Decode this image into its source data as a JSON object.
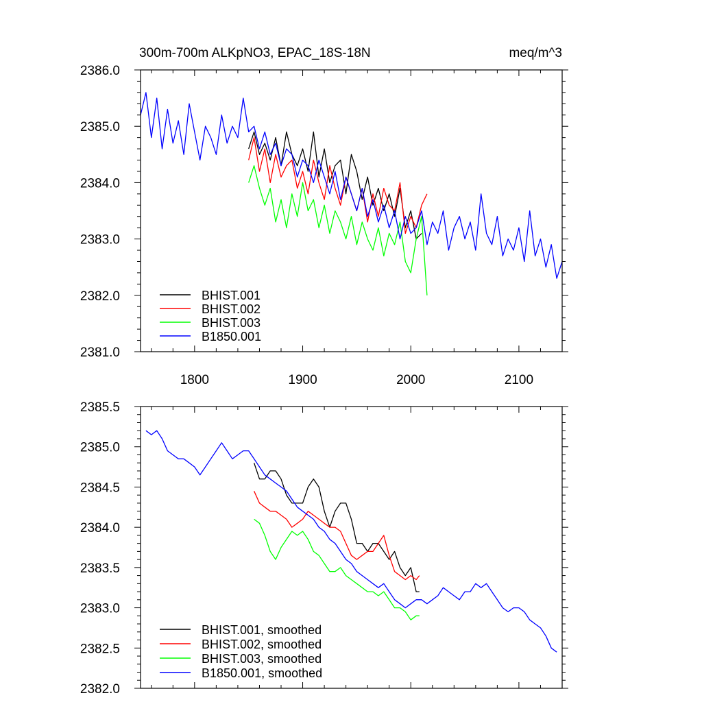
{
  "colors": {
    "black": "#000000",
    "red": "#ff0000",
    "green": "#00ff00",
    "blue": "#0000ff"
  },
  "chart_data": [
    {
      "type": "line",
      "title": "300m-700m ALKpNO3, EPAC_18S-18N",
      "units": "meq/m^3",
      "xlabel": "",
      "ylabel": "",
      "xlim": [
        1750,
        2140
      ],
      "ylim": [
        2381.0,
        2386.0
      ],
      "xticks": [
        1800,
        1900,
        2000,
        2100
      ],
      "xtick_labels": [
        "1800",
        "1900",
        "2000",
        "2100"
      ],
      "yticks": [
        2381.0,
        2382.0,
        2383.0,
        2384.0,
        2385.0,
        2386.0
      ],
      "ytick_labels": [
        "2381.0",
        "2382.0",
        "2383.0",
        "2384.0",
        "2385.0",
        "2386.0"
      ],
      "legend_position": "bottom-left",
      "series": [
        {
          "name": "BHIST.001",
          "color": "#000000",
          "x": [
            1850,
            1855,
            1860,
            1865,
            1870,
            1875,
            1880,
            1885,
            1890,
            1895,
            1900,
            1905,
            1910,
            1915,
            1920,
            1925,
            1930,
            1935,
            1940,
            1945,
            1950,
            1955,
            1960,
            1965,
            1970,
            1975,
            1980,
            1985,
            1990,
            1995,
            2000,
            2005,
            2010
          ],
          "y": [
            2384.6,
            2384.9,
            2384.5,
            2384.7,
            2384.4,
            2384.8,
            2384.3,
            2384.9,
            2384.5,
            2384.3,
            2384.6,
            2384.2,
            2384.9,
            2384.1,
            2384.6,
            2384.0,
            2384.3,
            2384.4,
            2383.8,
            2384.5,
            2384.2,
            2383.7,
            2384.1,
            2383.6,
            2383.9,
            2383.5,
            2383.8,
            2383.4,
            2383.9,
            2383.2,
            2383.5,
            2383.0,
            2383.1
          ]
        },
        {
          "name": "BHIST.002",
          "color": "#ff0000",
          "x": [
            1850,
            1855,
            1860,
            1865,
            1870,
            1875,
            1880,
            1885,
            1890,
            1895,
            1900,
            1905,
            1910,
            1915,
            1920,
            1925,
            1930,
            1935,
            1940,
            1945,
            1950,
            1955,
            1960,
            1965,
            1970,
            1975,
            1980,
            1985,
            1990,
            1995,
            2000,
            2005,
            2010,
            2015
          ],
          "y": [
            2384.4,
            2384.8,
            2384.2,
            2384.6,
            2384.0,
            2384.5,
            2384.1,
            2384.3,
            2384.4,
            2383.9,
            2384.2,
            2383.8,
            2384.4,
            2384.0,
            2383.7,
            2384.3,
            2383.9,
            2383.6,
            2384.1,
            2383.8,
            2383.5,
            2383.9,
            2383.3,
            2383.8,
            2383.4,
            2383.9,
            2383.6,
            2383.5,
            2384.0,
            2383.1,
            2383.4,
            2383.2,
            2383.6,
            2383.8
          ]
        },
        {
          "name": "BHIST.003",
          "color": "#00ff00",
          "x": [
            1850,
            1855,
            1860,
            1865,
            1870,
            1875,
            1880,
            1885,
            1890,
            1895,
            1900,
            1905,
            1910,
            1915,
            1920,
            1925,
            1930,
            1935,
            1940,
            1945,
            1950,
            1955,
            1960,
            1965,
            1970,
            1975,
            1980,
            1985,
            1990,
            1995,
            2000,
            2005,
            2010,
            2015
          ],
          "y": [
            2384.0,
            2384.3,
            2383.9,
            2383.6,
            2383.9,
            2383.3,
            2383.7,
            2383.2,
            2383.8,
            2383.4,
            2384.0,
            2383.5,
            2383.7,
            2383.2,
            2383.6,
            2383.1,
            2383.5,
            2383.3,
            2383.0,
            2383.4,
            2382.9,
            2383.3,
            2383.0,
            2382.8,
            2383.2,
            2382.7,
            2383.1,
            2382.9,
            2383.3,
            2382.6,
            2382.4,
            2383.0,
            2383.4,
            2382.0
          ]
        },
        {
          "name": "B1850.001",
          "color": "#0000ff",
          "x": [
            1750,
            1755,
            1760,
            1765,
            1770,
            1775,
            1780,
            1785,
            1790,
            1795,
            1800,
            1805,
            1810,
            1815,
            1820,
            1825,
            1830,
            1835,
            1840,
            1845,
            1850,
            1855,
            1860,
            1865,
            1870,
            1875,
            1880,
            1885,
            1890,
            1895,
            1900,
            1905,
            1910,
            1915,
            1920,
            1925,
            1930,
            1935,
            1940,
            1945,
            1950,
            1955,
            1960,
            1965,
            1970,
            1975,
            1980,
            1985,
            1990,
            1995,
            2000,
            2005,
            2010,
            2015,
            2020,
            2025,
            2030,
            2035,
            2040,
            2045,
            2050,
            2055,
            2060,
            2065,
            2070,
            2075,
            2080,
            2085,
            2090,
            2095,
            2100,
            2105,
            2110,
            2115,
            2120,
            2125,
            2130,
            2135,
            2140
          ],
          "y": [
            2385.2,
            2385.6,
            2384.8,
            2385.5,
            2384.6,
            2385.3,
            2384.7,
            2385.1,
            2384.5,
            2385.4,
            2384.9,
            2384.4,
            2385.0,
            2384.8,
            2384.5,
            2385.2,
            2384.7,
            2385.0,
            2384.8,
            2385.5,
            2384.9,
            2385.0,
            2384.6,
            2384.9,
            2384.5,
            2384.7,
            2384.3,
            2384.6,
            2384.5,
            2384.1,
            2384.4,
            2384.3,
            2384.0,
            2384.4,
            2384.1,
            2383.8,
            2384.2,
            2383.7,
            2384.1,
            2383.8,
            2383.5,
            2383.9,
            2383.4,
            2383.7,
            2383.3,
            2383.6,
            2383.2,
            2383.5,
            2383.0,
            2383.4,
            2383.1,
            2383.2,
            2383.5,
            2382.9,
            2383.3,
            2383.1,
            2383.5,
            2382.8,
            2383.2,
            2383.4,
            2383.0,
            2383.3,
            2382.8,
            2383.8,
            2383.1,
            2382.9,
            2383.4,
            2382.7,
            2383.0,
            2382.8,
            2383.2,
            2382.6,
            2383.5,
            2382.7,
            2383.0,
            2382.5,
            2382.9,
            2382.3,
            2382.6
          ]
        }
      ]
    },
    {
      "type": "line",
      "title": "",
      "xlabel": "",
      "ylabel": "",
      "xlim": [
        1750,
        2140
      ],
      "ylim": [
        2382.0,
        2385.5
      ],
      "xticks": [
        1800,
        1900,
        2000,
        2100
      ],
      "xtick_labels": [],
      "yticks": [
        2382.0,
        2382.5,
        2383.0,
        2383.5,
        2384.0,
        2384.5,
        2385.0,
        2385.5
      ],
      "ytick_labels": [
        "2382.0",
        "2382.5",
        "2383.0",
        "2383.5",
        "2384.0",
        "2384.5",
        "2385.0",
        "2385.5"
      ],
      "legend_position": "bottom-left",
      "series": [
        {
          "name": "BHIST.001, smoothed",
          "color": "#000000",
          "x": [
            1855,
            1860,
            1865,
            1870,
            1875,
            1880,
            1885,
            1890,
            1895,
            1900,
            1905,
            1910,
            1915,
            1920,
            1925,
            1930,
            1935,
            1940,
            1945,
            1950,
            1955,
            1960,
            1965,
            1970,
            1975,
            1980,
            1985,
            1990,
            1995,
            2000,
            2005,
            2008
          ],
          "y": [
            2384.8,
            2384.6,
            2384.6,
            2384.7,
            2384.7,
            2384.6,
            2384.4,
            2384.3,
            2384.3,
            2384.3,
            2384.5,
            2384.6,
            2384.5,
            2384.2,
            2384.0,
            2384.2,
            2384.3,
            2384.3,
            2384.1,
            2383.8,
            2383.8,
            2383.7,
            2383.8,
            2383.8,
            2383.7,
            2383.6,
            2383.7,
            2383.5,
            2383.4,
            2383.5,
            2383.2,
            2383.2
          ]
        },
        {
          "name": "BHIST.002, smoothed",
          "color": "#ff0000",
          "x": [
            1855,
            1860,
            1865,
            1870,
            1875,
            1880,
            1885,
            1890,
            1895,
            1900,
            1905,
            1910,
            1915,
            1920,
            1925,
            1930,
            1935,
            1940,
            1945,
            1950,
            1955,
            1960,
            1965,
            1970,
            1975,
            1980,
            1985,
            1990,
            1995,
            2000,
            2005,
            2008
          ],
          "y": [
            2384.45,
            2384.3,
            2384.25,
            2384.2,
            2384.2,
            2384.15,
            2384.1,
            2384.0,
            2384.05,
            2384.1,
            2384.2,
            2384.15,
            2384.1,
            2384.05,
            2384.0,
            2384.0,
            2383.95,
            2383.8,
            2383.65,
            2383.6,
            2383.65,
            2383.7,
            2383.7,
            2383.8,
            2383.9,
            2383.65,
            2383.45,
            2383.4,
            2383.35,
            2383.4,
            2383.35,
            2383.4
          ]
        },
        {
          "name": "BHIST.003, smoothed",
          "color": "#00ff00",
          "x": [
            1855,
            1860,
            1865,
            1870,
            1875,
            1880,
            1885,
            1890,
            1895,
            1900,
            1905,
            1910,
            1915,
            1920,
            1925,
            1930,
            1935,
            1940,
            1945,
            1950,
            1955,
            1960,
            1965,
            1970,
            1975,
            1980,
            1985,
            1990,
            1995,
            2000,
            2005,
            2008
          ],
          "y": [
            2384.1,
            2384.05,
            2383.9,
            2383.7,
            2383.6,
            2383.75,
            2383.85,
            2383.95,
            2383.9,
            2383.95,
            2383.85,
            2383.7,
            2383.65,
            2383.55,
            2383.45,
            2383.45,
            2383.5,
            2383.4,
            2383.35,
            2383.3,
            2383.25,
            2383.2,
            2383.2,
            2383.15,
            2383.2,
            2383.1,
            2383.0,
            2383.0,
            2382.95,
            2382.85,
            2382.9,
            2382.9
          ]
        },
        {
          "name": "B1850.001, smoothed",
          "color": "#0000ff",
          "x": [
            1755,
            1760,
            1765,
            1770,
            1775,
            1780,
            1785,
            1790,
            1795,
            1800,
            1805,
            1810,
            1815,
            1820,
            1825,
            1830,
            1835,
            1840,
            1845,
            1850,
            1855,
            1860,
            1865,
            1870,
            1875,
            1880,
            1885,
            1890,
            1895,
            1900,
            1905,
            1910,
            1915,
            1920,
            1925,
            1930,
            1935,
            1940,
            1945,
            1950,
            1955,
            1960,
            1965,
            1970,
            1975,
            1980,
            1985,
            1990,
            1995,
            2000,
            2005,
            2010,
            2015,
            2020,
            2025,
            2030,
            2035,
            2040,
            2045,
            2050,
            2055,
            2060,
            2065,
            2070,
            2075,
            2080,
            2085,
            2090,
            2095,
            2100,
            2105,
            2110,
            2115,
            2120,
            2125,
            2130,
            2135
          ],
          "y": [
            2385.2,
            2385.15,
            2385.2,
            2385.1,
            2384.95,
            2384.9,
            2384.85,
            2384.85,
            2384.8,
            2384.75,
            2384.65,
            2384.75,
            2384.85,
            2384.95,
            2385.05,
            2384.95,
            2384.85,
            2384.9,
            2384.95,
            2384.95,
            2384.85,
            2384.75,
            2384.65,
            2384.6,
            2384.55,
            2384.5,
            2384.45,
            2384.35,
            2384.25,
            2384.2,
            2384.15,
            2384.1,
            2384.0,
            2383.95,
            2383.85,
            2383.8,
            2383.7,
            2383.6,
            2383.55,
            2383.45,
            2383.4,
            2383.35,
            2383.3,
            2383.25,
            2383.3,
            2383.2,
            2383.1,
            2383.05,
            2383.0,
            2383.05,
            2383.1,
            2383.1,
            2383.05,
            2383.1,
            2383.15,
            2383.25,
            2383.2,
            2383.15,
            2383.1,
            2383.2,
            2383.2,
            2383.3,
            2383.25,
            2383.3,
            2383.2,
            2383.1,
            2383.0,
            2382.95,
            2383.0,
            2383.0,
            2382.95,
            2382.85,
            2382.8,
            2382.75,
            2382.65,
            2382.5,
            2382.45
          ]
        }
      ]
    }
  ]
}
